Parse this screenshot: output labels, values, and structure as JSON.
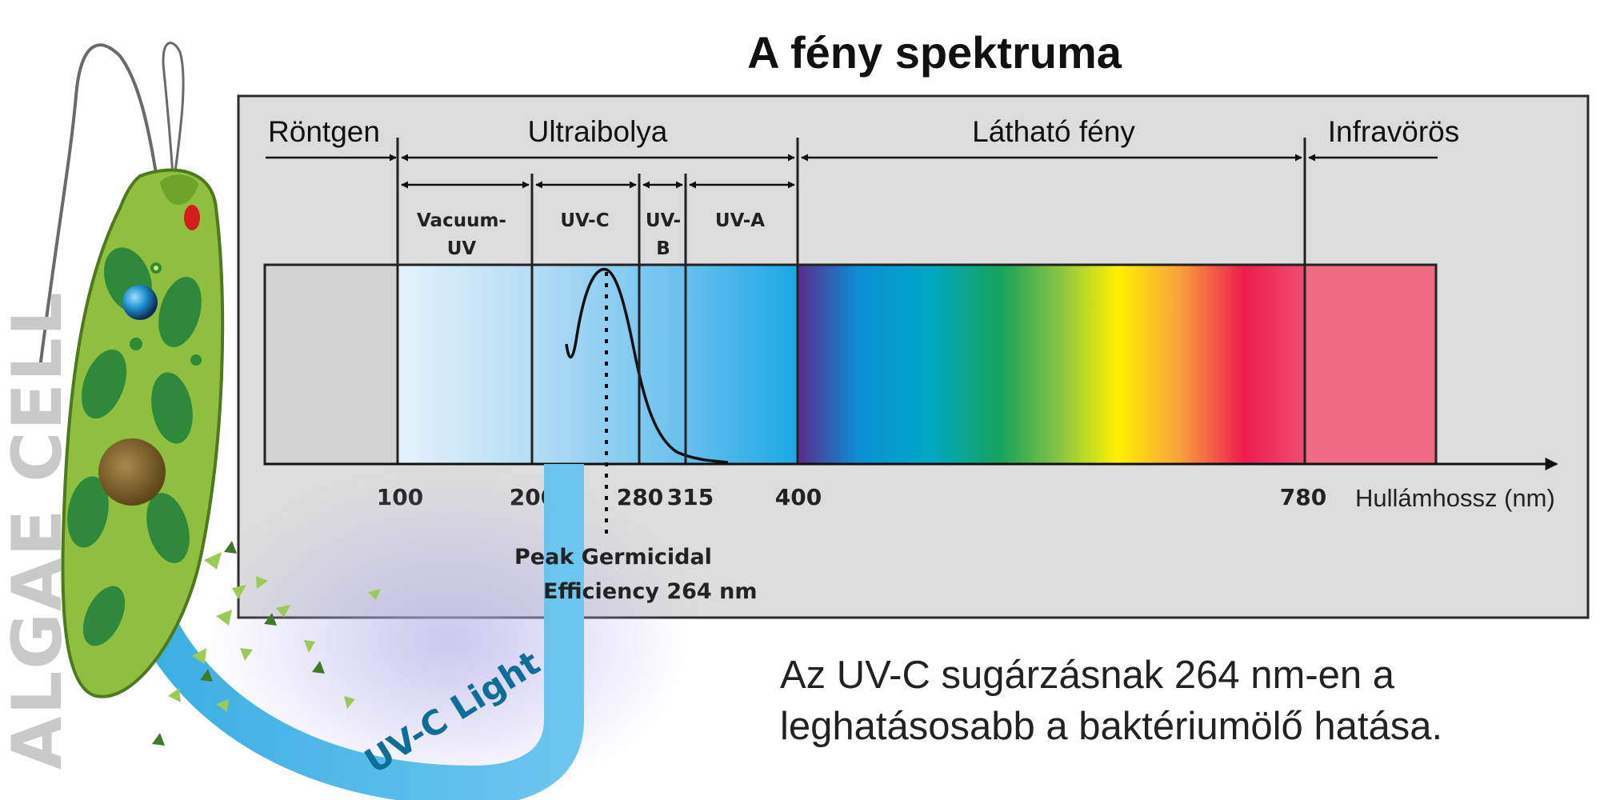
{
  "title": "A fény spektruma",
  "regions": {
    "rontgen": "Röntgen",
    "ultraibolya": "Ultraibolya",
    "lathato": "Látható fény",
    "infravoros": "Infravörös"
  },
  "subbands": {
    "vacuum_uv": [
      "Vacuum-",
      "UV"
    ],
    "uv_c": "UV-C",
    "uv_b": [
      "UV-",
      "B"
    ],
    "uv_a": "UV-A"
  },
  "axis": {
    "ticks": [
      "100",
      "200",
      "280",
      "315",
      "400",
      "780"
    ],
    "label": "Hullámhossz (nm)"
  },
  "peak_label": [
    "Peak Germicidal",
    "Efficiency 264 nm"
  ],
  "uvc_light_label": "UV-C Light",
  "side_label": "ALGAE CELL",
  "caption": [
    "Az UV-C sugárzásnak 264 nm-en a",
    "leghatásosabb a baktériumölő hatása."
  ],
  "colors": {
    "panel": "#dcdcdc",
    "xray": "#d2d2d2",
    "infrared": "#ef6b82",
    "uv_beam": "#4bb6e6",
    "cell_green": "#8ebf3f"
  }
}
